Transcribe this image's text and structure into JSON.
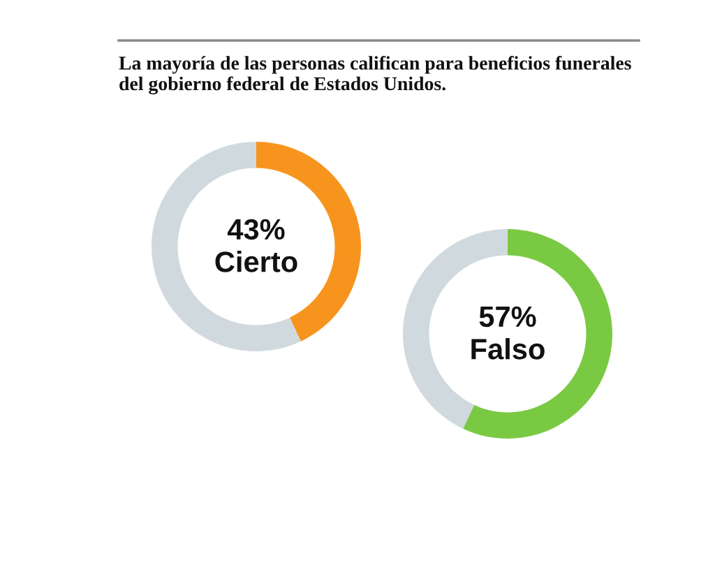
{
  "chart_data": [
    {
      "type": "donut",
      "title": "La mayoría de las personas califican para beneficios funerales del gobierno federal de Estados Unidos.",
      "categories": [
        "Cierto",
        null
      ],
      "values": [
        43,
        57
      ],
      "colors": [
        "#f7941d",
        "#d0dade"
      ],
      "value_labels": [
        "43%",
        null
      ]
    },
    {
      "type": "donut",
      "categories": [
        "Falso",
        null
      ],
      "values": [
        57,
        43
      ],
      "colors": [
        "#7ac943",
        "#d0dade"
      ],
      "value_labels": [
        "57%",
        null
      ]
    }
  ]
}
